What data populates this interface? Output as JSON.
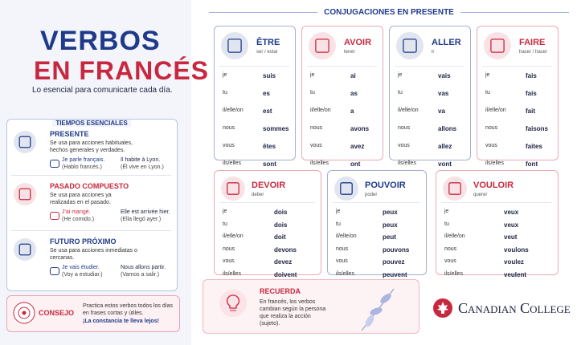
{
  "header": {
    "title_line1": "VERBOS",
    "title_line2": "EN FRANCÉS",
    "subtitle": "Lo esencial para comunicarte cada día."
  },
  "tenses": {
    "title": "TIEMPOS ESENCIALES",
    "items": [
      {
        "name": "PRESENTE",
        "description": "Se usa para acciones habituales, hechos generales y verdades.",
        "color": "#1f3a8a",
        "examples": [
          {
            "fr": "Je parle français.",
            "es": "(Hablo francés.)"
          },
          {
            "fr": "Il habite à Lyon.",
            "es": "(Él vive en Lyon.)"
          }
        ]
      },
      {
        "name": "PASADO COMPUESTO",
        "description": "Se usa para acciones ya realizadas en el pasado.",
        "color": "#c8283f",
        "examples": [
          {
            "fr": "J'ai mangé.",
            "es": "(He comido.)"
          },
          {
            "fr": "Elle est arrivée hier.",
            "es": "(Ella llegó ayer.)"
          }
        ]
      },
      {
        "name": "FUTURO PRÓXIMO",
        "description": "Se usa para acciones inmediatas o cercanas.",
        "color": "#1f3a8a",
        "examples": [
          {
            "fr": "Je vais étudier.",
            "es": "(Voy a estudiar.)"
          },
          {
            "fr": "Nous allons partir.",
            "es": "(Vamos a salir.)"
          }
        ]
      }
    ]
  },
  "tip": {
    "label": "CONSEJO",
    "text": "Practica estos verbos todos los días en frases cortas y útiles.",
    "highlight": "¡La constancia te lleva lejos!"
  },
  "conjugations": {
    "title": "CONJUGACIONES EN PRESENTE",
    "pronouns": [
      "je",
      "tu",
      "il/elle/on",
      "nous",
      "vous",
      "ils/elles"
    ],
    "verbs": [
      {
        "name": "ÊTRE",
        "meaning": "ser / estar",
        "color": "#1f3a8a",
        "forms": [
          "suis",
          "es",
          "est",
          "sommes",
          "êtes",
          "sont"
        ]
      },
      {
        "name": "AVOIR",
        "meaning": "tener",
        "color": "#c8283f",
        "forms": [
          "ai",
          "as",
          "a",
          "avons",
          "avez",
          "ont"
        ]
      },
      {
        "name": "ALLER",
        "meaning": "ir",
        "color": "#1f3a8a",
        "forms": [
          "vais",
          "vas",
          "va",
          "allons",
          "allez",
          "vont"
        ]
      },
      {
        "name": "FAIRE",
        "meaning": "hacer / hacer",
        "color": "#c8283f",
        "forms": [
          "fais",
          "fais",
          "fait",
          "faisons",
          "faites",
          "font"
        ]
      },
      {
        "name": "DEVOIR",
        "meaning": "deber",
        "color": "#c8283f",
        "forms": [
          "dois",
          "dois",
          "doit",
          "devons",
          "devez",
          "doivent"
        ]
      },
      {
        "name": "POUVOIR",
        "meaning": "poder",
        "color": "#1f3a8a",
        "forms": [
          "peux",
          "peux",
          "peut",
          "pouvons",
          "pouvez",
          "peuvent"
        ]
      },
      {
        "name": "VOULOIR",
        "meaning": "querer",
        "color": "#c8283f",
        "forms": [
          "veux",
          "veux",
          "veut",
          "voulons",
          "voulez",
          "veulent"
        ]
      }
    ]
  },
  "reminder": {
    "label": "RECUERDA",
    "text": "En francés, los verbos cambian según la persona que realiza la acción (sujeto)."
  },
  "logo": {
    "text": "Canadian College"
  }
}
